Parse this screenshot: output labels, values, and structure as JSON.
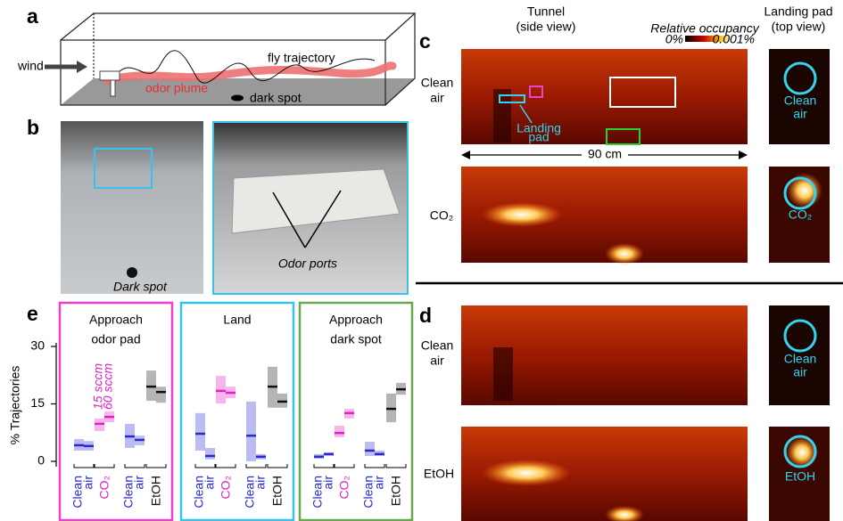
{
  "panel_labels": [
    "a",
    "b",
    "c",
    "d",
    "e"
  ],
  "panel_a": {
    "wind": "wind",
    "fly_trajectory": "fly trajectory",
    "odor_plume": "odor plume",
    "dark_spot": "dark spot"
  },
  "panel_b": {
    "dark_spot": "Dark spot",
    "odor_ports": "Odor ports"
  },
  "panel_c": {
    "tunnel_title": [
      "Tunnel",
      "(side view)"
    ],
    "pad_title": [
      "Landing pad",
      "(top view)"
    ],
    "colorbar_title": "Relative occupancy",
    "colorbar_min": "0%",
    "colorbar_max": "0.001%",
    "landing_pad": [
      "Landing",
      "pad"
    ],
    "scale": "90 cm",
    "rows": [
      {
        "label": [
          "Clean",
          "air"
        ],
        "pad": [
          "Clean",
          "air"
        ]
      },
      {
        "label": [
          "CO₂"
        ],
        "pad": [
          "CO₂"
        ]
      }
    ]
  },
  "panel_d": {
    "rows": [
      {
        "label": [
          "Clean",
          "air"
        ],
        "pad": [
          "Clean",
          "air"
        ]
      },
      {
        "label": [
          "EtOH"
        ],
        "pad": [
          "EtOH"
        ]
      }
    ]
  },
  "chart_data": {
    "type": "range",
    "ylabel": "% Trajectories",
    "ylim": [
      0,
      30
    ],
    "yticks": [
      0,
      15,
      30
    ],
    "flow_labels": [
      "15 sccm",
      "60 sccm"
    ],
    "groups": [
      {
        "label": [
          "Clean",
          "air"
        ],
        "color": "#2a2ad0",
        "light": "#b0b0f0"
      },
      {
        "label": [
          "CO₂"
        ],
        "color": "#e020c8",
        "light": "#f7a8e8"
      },
      {
        "label": [
          "Clean",
          "air"
        ],
        "color": "#2a2ad0",
        "light": "#b0b0f0"
      },
      {
        "label": [
          "EtOH"
        ],
        "color": "#111111",
        "light": "#a8a8a8"
      }
    ],
    "panels": [
      {
        "title": [
          "Approach",
          "odor pad"
        ],
        "frame_color": "#ee3fcf",
        "median": [
          [
            4.2,
            4.0
          ],
          [
            9.8,
            11.6
          ],
          [
            6.5,
            5.6
          ],
          [
            19.5,
            18.1
          ]
        ],
        "low": [
          [
            2.8,
            2.8
          ],
          [
            7.9,
            10.2
          ],
          [
            3.5,
            4.2
          ],
          [
            15.8,
            15.3
          ]
        ],
        "high": [
          [
            5.8,
            5.3
          ],
          [
            11.2,
            13.0
          ],
          [
            9.8,
            6.7
          ],
          [
            23.7,
            19.5
          ]
        ]
      },
      {
        "title": [
          "Land"
        ],
        "frame_color": "#36c3ee",
        "median": [
          [
            7.2,
            1.4
          ],
          [
            18.4,
            17.9
          ],
          [
            6.7,
            1.2
          ],
          [
            19.5,
            15.6
          ]
        ],
        "low": [
          [
            2.8,
            0.5
          ],
          [
            15.1,
            16.5
          ],
          [
            0,
            0.5
          ],
          [
            14.0,
            14.0
          ]
        ],
        "high": [
          [
            12.6,
            3.5
          ],
          [
            22.3,
            19.5
          ],
          [
            15.6,
            1.9
          ],
          [
            24.7,
            17.7
          ]
        ]
      },
      {
        "title": [
          "Approach",
          "dark spot"
        ],
        "frame_color": "#6aa84f",
        "median": [
          [
            1.2,
            1.9
          ],
          [
            7.4,
            12.6
          ],
          [
            2.8,
            1.9
          ],
          [
            13.7,
            18.8
          ]
        ],
        "low": [
          [
            0.7,
            1.4
          ],
          [
            6.3,
            11.2
          ],
          [
            1.4,
            1.4
          ],
          [
            10.2,
            17.4
          ]
        ],
        "high": [
          [
            1.9,
            2.3
          ],
          [
            9.3,
            13.7
          ],
          [
            5.1,
            2.8
          ],
          [
            17.7,
            20.5
          ]
        ]
      }
    ]
  }
}
